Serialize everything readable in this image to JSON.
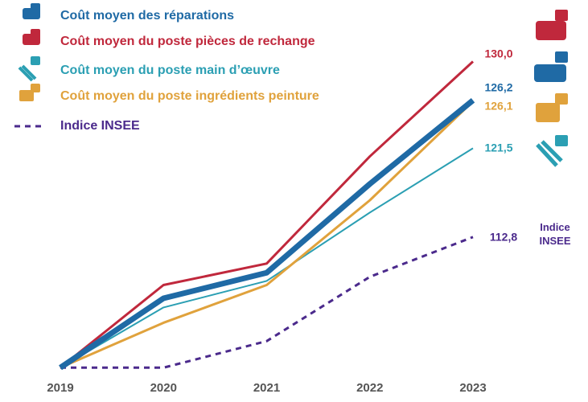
{
  "chart_data": {
    "type": "line",
    "x": [
      2019,
      2020,
      2021,
      2022,
      2023
    ],
    "xlim": [
      2019,
      2023
    ],
    "ylim": [
      99,
      131.3
    ],
    "series": [
      {
        "name": "Coût moyen des réparations",
        "color": "#1f6aa5",
        "values": [
          100,
          106.8,
          109.3,
          118.0,
          126.2
        ],
        "value_labels": [
          null,
          null,
          null,
          null,
          "126,2"
        ]
      },
      {
        "name": "Coût moyen du poste pièces de rechange",
        "color": "#c0283c",
        "values": [
          100,
          108.1,
          110.2,
          120.7,
          130.0
        ],
        "value_labels": [
          null,
          null,
          null,
          null,
          "130,0"
        ]
      },
      {
        "name": "Coût moyen du poste main d’œuvre",
        "color": "#2b9fb3",
        "values": [
          100,
          105.9,
          108.5,
          115.2,
          121.5
        ],
        "value_labels": [
          null,
          null,
          null,
          null,
          "121,5"
        ]
      },
      {
        "name": "Coût moyen du poste ingrédients peinture",
        "color": "#e0a23c",
        "values": [
          100,
          104.4,
          108.1,
          116.4,
          126.1
        ],
        "value_labels": [
          null,
          null,
          null,
          null,
          "126,1"
        ]
      },
      {
        "name": "Indice INSEE",
        "color": "#4b2a8c",
        "dashed": true,
        "values": [
          100,
          100.0,
          102.6,
          108.9,
          112.8
        ],
        "value_labels": [
          null,
          null,
          null,
          null,
          "112,8"
        ]
      }
    ],
    "annotations": [
      "Indice INSEE"
    ]
  }
}
